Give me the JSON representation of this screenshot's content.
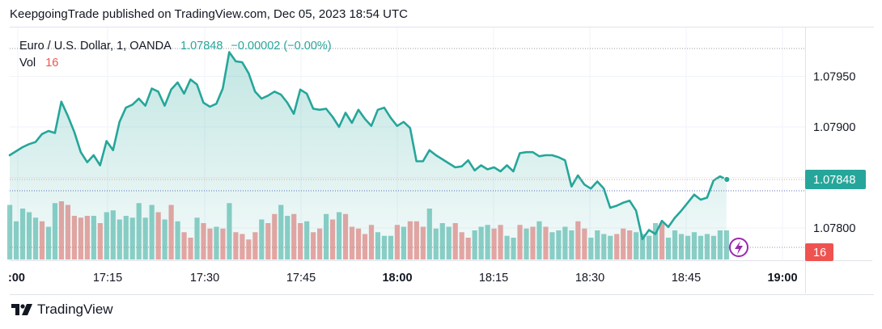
{
  "header": {
    "publisher_line": "KeepgoingTrade published on TradingView.com, Dec 05, 2023 18:54 UTC"
  },
  "legend": {
    "symbol": "Euro / U.S. Dollar, 1, OANDA",
    "price": "1.07848",
    "change": "−0.00002 (−0.00%)",
    "vol_label": "Vol",
    "vol_value": "16"
  },
  "footer": {
    "brand": "TradingView"
  },
  "colors": {
    "line": "#26a69a",
    "up_volume": "#8fd0c8",
    "down_volume": "#efa5a3",
    "price_label_bg": "#26a69a",
    "vol_label_bg": "#ef5350",
    "lightning": "#9c27b0"
  },
  "icons": {
    "alert": "lightning-icon",
    "brand": "tradingview-logo-icon"
  },
  "chart_data": {
    "type": "line",
    "title": "Euro / U.S. Dollar, 1, OANDA",
    "x_ticks": [
      ":00",
      "17:15",
      "17:30",
      "17:45",
      "18:00",
      "18:15",
      "18:30",
      "18:45",
      "19:00"
    ],
    "y_ticks": [
      "1.07950",
      "1.07900",
      "1.07850",
      "1.07800"
    ],
    "ylim": [
      1.07775,
      1.07985
    ],
    "last_price": 1.07848,
    "last_price_label": "1.07848",
    "last_volume_label": "16",
    "series": [
      {
        "values": [
          1.07872,
          1.07876,
          1.0788,
          1.07883,
          1.07885,
          1.07893,
          1.07896,
          1.07894,
          1.07925,
          1.07911,
          1.07895,
          1.07875,
          1.07865,
          1.07872,
          1.07862,
          1.07886,
          1.07877,
          1.07905,
          1.07919,
          1.07922,
          1.07928,
          1.07921,
          1.07938,
          1.07935,
          1.07921,
          1.07937,
          1.07944,
          1.07933,
          1.07947,
          1.07942,
          1.07924,
          1.0792,
          1.07923,
          1.07938,
          1.07974,
          1.07965,
          1.07964,
          1.07953,
          1.07935,
          1.07928,
          1.07931,
          1.07935,
          1.07932,
          1.07924,
          1.07913,
          1.07937,
          1.07933,
          1.07918,
          1.07917,
          1.07918,
          1.0791,
          1.079,
          1.07914,
          1.07904,
          1.07917,
          1.07908,
          1.07901,
          1.07917,
          1.07919,
          1.07909,
          1.07901,
          1.07905,
          1.07899,
          1.07866,
          1.07866,
          1.07877,
          1.07872,
          1.07868,
          1.07864,
          1.0786,
          1.07861,
          1.07867,
          1.07857,
          1.07862,
          1.07858,
          1.0786,
          1.07856,
          1.07862,
          1.07856,
          1.07874,
          1.07875,
          1.07875,
          1.07871,
          1.07872,
          1.07872,
          1.0787,
          1.07867,
          1.07841,
          1.07852,
          1.07843,
          1.07839,
          1.07846,
          1.07839,
          1.0782,
          1.07822,
          1.07825,
          1.07827,
          1.07817,
          1.07789,
          1.07798,
          1.07794,
          1.07807,
          1.07801,
          1.0781,
          1.07817,
          1.07825,
          1.07833,
          1.07828,
          1.0783,
          1.07847,
          1.07851,
          1.07848
        ]
      }
    ],
    "volume": [
      30,
      21,
      28,
      26,
      23,
      21,
      18,
      31,
      32,
      30,
      24,
      23,
      24,
      24,
      20,
      26,
      27,
      22,
      24,
      23,
      31,
      23,
      30,
      26,
      22,
      30,
      21,
      15,
      12,
      23,
      20,
      17,
      18,
      17,
      31,
      15,
      14,
      11,
      15,
      22,
      20,
      25,
      30,
      24,
      25,
      20,
      21,
      15,
      17,
      25,
      22,
      26,
      25,
      18,
      17,
      14,
      19,
      15,
      13,
      13,
      19,
      18,
      21,
      21,
      18,
      28,
      17,
      20,
      18,
      20,
      15,
      12,
      16,
      18,
      19,
      17,
      19,
      13,
      12,
      19,
      17,
      18,
      21,
      18,
      15,
      16,
      18,
      16,
      21,
      17,
      12,
      16,
      14,
      13,
      14,
      17,
      16,
      15,
      14,
      13,
      20,
      20,
      12,
      16,
      14,
      13,
      15,
      13,
      14,
      13,
      16,
      16
    ],
    "volume_up": [
      1,
      1,
      1,
      1,
      1,
      0,
      1,
      1,
      0,
      0,
      0,
      0,
      0,
      1,
      0,
      1,
      1,
      1,
      1,
      1,
      1,
      1,
      1,
      0,
      1,
      0,
      1,
      0,
      0,
      1,
      0,
      0,
      1,
      0,
      1,
      0,
      0,
      0,
      0,
      1,
      0,
      0,
      1,
      1,
      0,
      0,
      1,
      0,
      0,
      1,
      0,
      1,
      0,
      0,
      0,
      0,
      0,
      1,
      1,
      1,
      0,
      1,
      0,
      0,
      0,
      1,
      1,
      1,
      1,
      0,
      0,
      0,
      1,
      1,
      1,
      0,
      0,
      1,
      1,
      0,
      1,
      0,
      1,
      0,
      1,
      1,
      1,
      1,
      0,
      0,
      1,
      1,
      1,
      1,
      0,
      0,
      0,
      1,
      1,
      1,
      1,
      0,
      1,
      1,
      1,
      1,
      1,
      1,
      1,
      1,
      1,
      1
    ]
  }
}
